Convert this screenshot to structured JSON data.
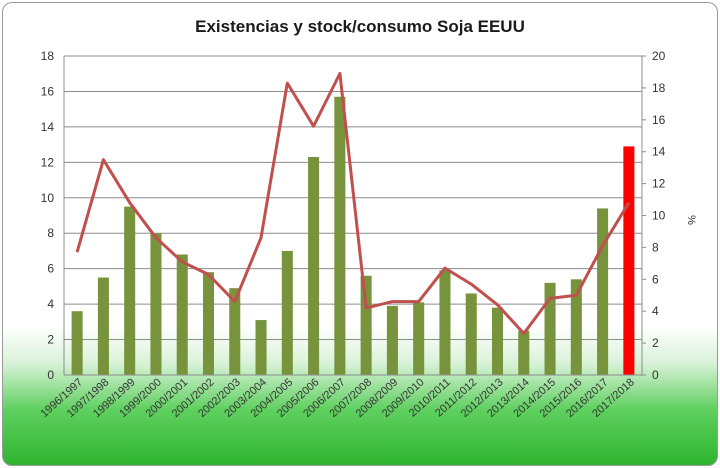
{
  "chart_data": {
    "type": "bar",
    "title": "Existencias y stock/consumo Soja EEUU",
    "ylabel_left": "",
    "ylabel_right": "%",
    "ylim_left": [
      0,
      18
    ],
    "ylim_right": [
      0,
      20
    ],
    "left_ticks": [
      0,
      2,
      4,
      6,
      8,
      10,
      12,
      14,
      16,
      18
    ],
    "right_ticks": [
      0,
      2,
      4,
      6,
      8,
      10,
      12,
      14,
      16,
      18,
      20
    ],
    "grid": true,
    "legend": "none",
    "categories": [
      "1996/1997",
      "1997/1998",
      "1998/1999",
      "1999/2000",
      "2000/2001",
      "2001/2002",
      "2002/2003",
      "2003/2004",
      "2004/2005",
      "2005/2006",
      "2006/2007",
      "2007/2008",
      "2008/2009",
      "2009/2010",
      "2010/2011",
      "2011/2012",
      "2012/2013",
      "2013/2014",
      "2014/2015",
      "2015/2016",
      "2016/2017",
      "2017/2018"
    ],
    "series": [
      {
        "axis": "left",
        "kind": "bar",
        "values": [
          3.6,
          5.5,
          9.5,
          8.0,
          6.8,
          5.8,
          4.9,
          3.1,
          7.0,
          12.3,
          15.7,
          5.6,
          3.9,
          4.1,
          5.9,
          4.6,
          3.8,
          2.5,
          5.2,
          5.4,
          9.4,
          12.9
        ],
        "colors": [
          "#77933c",
          "#77933c",
          "#77933c",
          "#77933c",
          "#77933c",
          "#77933c",
          "#77933c",
          "#77933c",
          "#77933c",
          "#77933c",
          "#77933c",
          "#77933c",
          "#77933c",
          "#77933c",
          "#77933c",
          "#77933c",
          "#77933c",
          "#77933c",
          "#77933c",
          "#77933c",
          "#77933c",
          "#ff0000"
        ]
      },
      {
        "axis": "right",
        "kind": "line",
        "color": "#c0504d",
        "values": [
          7.7,
          13.5,
          10.8,
          8.6,
          7.1,
          6.3,
          4.6,
          8.6,
          18.3,
          15.6,
          18.9,
          4.2,
          4.6,
          4.6,
          6.7,
          5.7,
          4.4,
          2.6,
          4.8,
          5.0,
          8.1,
          10.8
        ]
      }
    ]
  }
}
